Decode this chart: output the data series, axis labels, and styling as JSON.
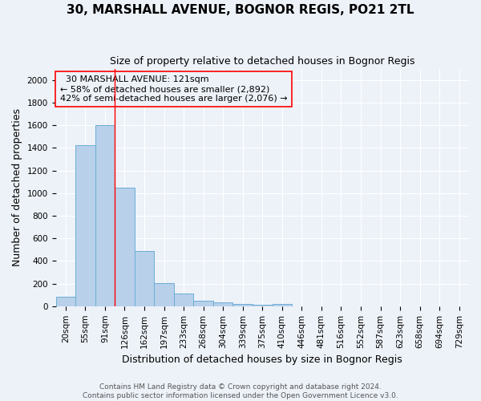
{
  "title": "30, MARSHALL AVENUE, BOGNOR REGIS, PO21 2TL",
  "subtitle": "Size of property relative to detached houses in Bognor Regis",
  "xlabel": "Distribution of detached houses by size in Bognor Regis",
  "ylabel": "Number of detached properties",
  "footnote1": "Contains HM Land Registry data © Crown copyright and database right 2024.",
  "footnote2": "Contains public sector information licensed under the Open Government Licence v3.0.",
  "annotation_line1": "  30 MARSHALL AVENUE: 121sqm",
  "annotation_line2": "← 58% of detached houses are smaller (2,892)",
  "annotation_line3": "42% of semi-detached houses are larger (2,076) →",
  "bar_labels": [
    "20sqm",
    "55sqm",
    "91sqm",
    "126sqm",
    "162sqm",
    "197sqm",
    "233sqm",
    "268sqm",
    "304sqm",
    "339sqm",
    "375sqm",
    "410sqm",
    "446sqm",
    "481sqm",
    "516sqm",
    "552sqm",
    "587sqm",
    "623sqm",
    "658sqm",
    "694sqm",
    "729sqm"
  ],
  "bar_values": [
    85,
    1420,
    1600,
    1050,
    490,
    205,
    110,
    45,
    35,
    20,
    10,
    18,
    0,
    0,
    0,
    0,
    0,
    0,
    0,
    0,
    0
  ],
  "bar_color": "#b8d0ea",
  "bar_edge_color": "#6baed6",
  "red_line_x": 2.5,
  "ylim": [
    0,
    2100
  ],
  "yticks": [
    0,
    200,
    400,
    600,
    800,
    1000,
    1200,
    1400,
    1600,
    1800,
    2000
  ],
  "background_color": "#edf2f9",
  "grid_color": "#ffffff",
  "title_fontsize": 11,
  "subtitle_fontsize": 9,
  "axis_label_fontsize": 9,
  "tick_fontsize": 7.5,
  "annotation_fontsize": 8,
  "footnote_fontsize": 6.5
}
